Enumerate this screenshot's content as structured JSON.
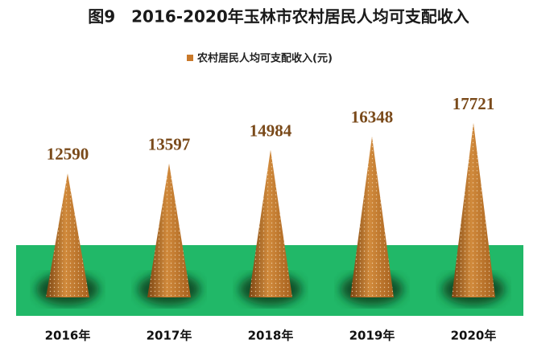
{
  "chart_data": {
    "type": "bar",
    "title": "图9　2016-2020年玉林市农村居民人均可支配收入",
    "categories": [
      "2016年",
      "2017年",
      "2018年",
      "2019年",
      "2020年"
    ],
    "series": [
      {
        "name": "农村居民人均可支配收入(元)",
        "color": "#c9792a",
        "values": [
          12590,
          13597,
          14984,
          16348,
          17721
        ]
      }
    ],
    "legend": "top"
  }
}
